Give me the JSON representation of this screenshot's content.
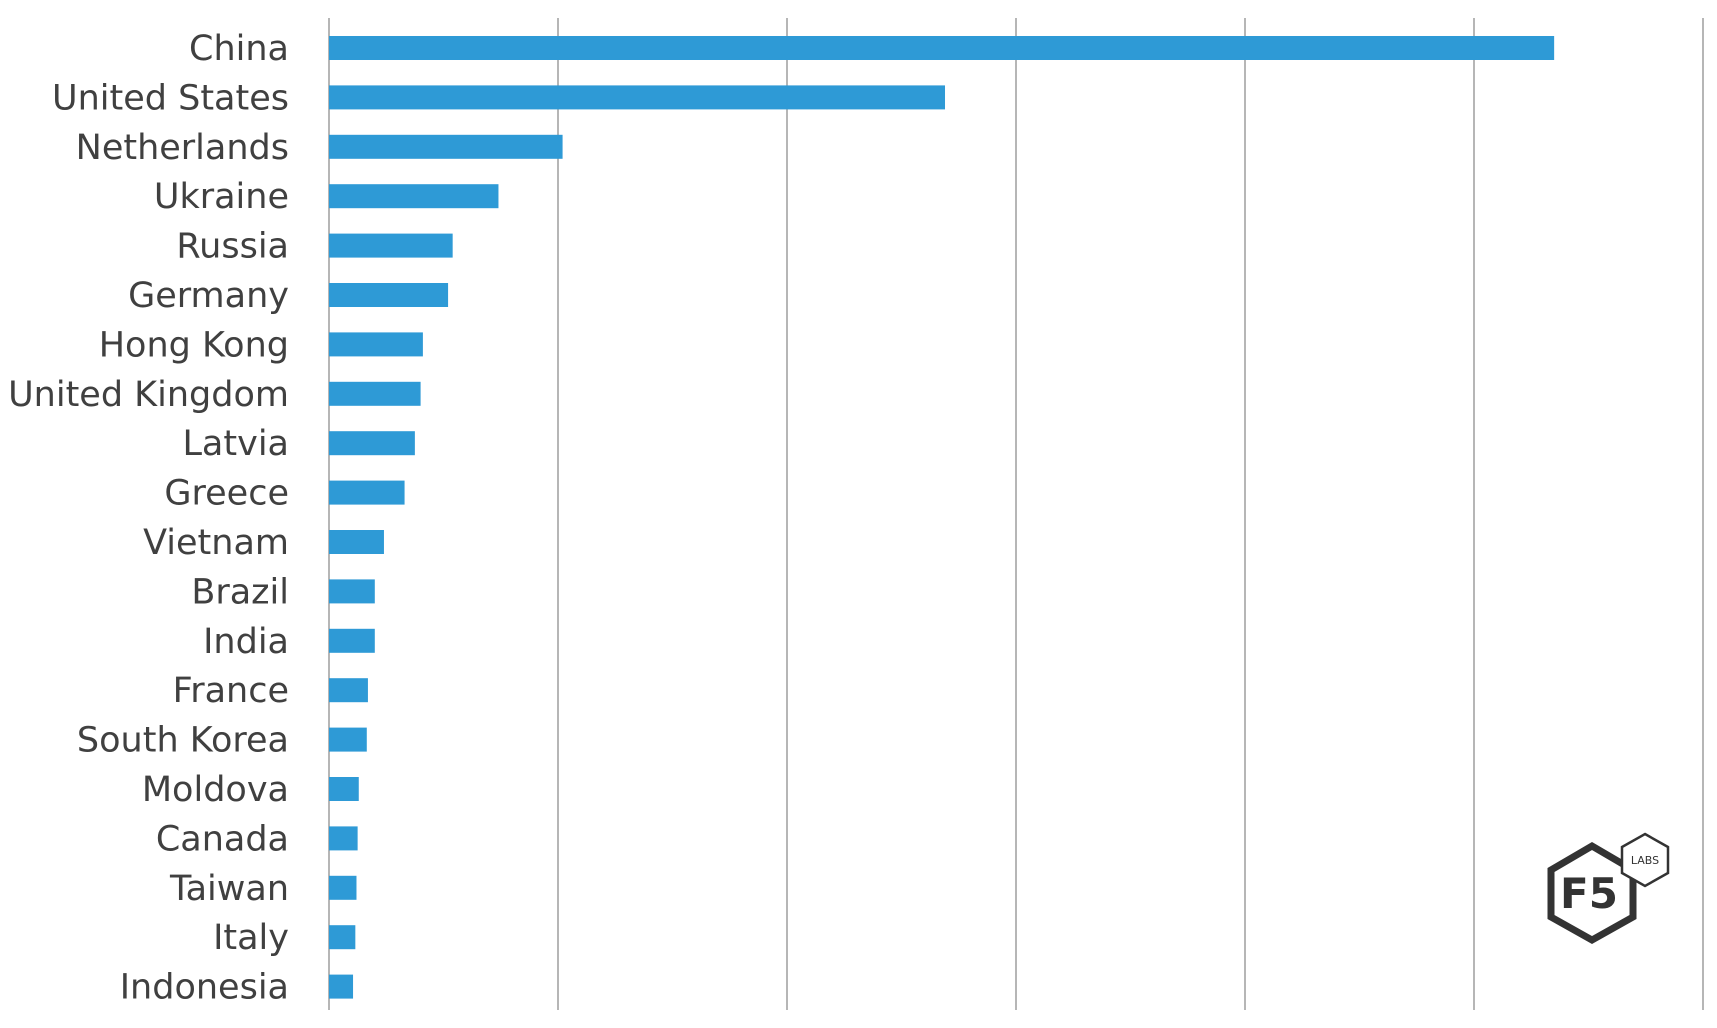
{
  "chart_data": {
    "type": "bar",
    "orientation": "horizontal",
    "title": "",
    "xlabel": "",
    "ylabel": "",
    "categories": [
      "China",
      "United States",
      "Netherlands",
      "Ukraine",
      "Russia",
      "Germany",
      "Hong Kong",
      "United Kingdom",
      "Latvia",
      "Greece",
      "Vietnam",
      "Brazil",
      "India",
      "France",
      "South Korea",
      "Moldova",
      "Canada",
      "Taiwan",
      "Italy",
      "Indonesia"
    ],
    "values": [
      5.35,
      2.69,
      1.02,
      0.74,
      0.54,
      0.52,
      0.41,
      0.4,
      0.375,
      0.33,
      0.24,
      0.2,
      0.2,
      0.17,
      0.165,
      0.13,
      0.125,
      0.12,
      0.115,
      0.105
    ],
    "xlim": [
      0,
      6
    ],
    "gridlines": [
      0,
      1,
      2,
      3,
      4,
      5,
      6
    ],
    "tick_labels_shown": false,
    "grid": true,
    "bar_color": "#2e9ad6",
    "grid_color": "#9e9e9e",
    "label_color": "#404040"
  },
  "logo": {
    "brand": "F5",
    "badge": "LABS",
    "icon": "f5-labs-hexagon-logo",
    "color": "#333333"
  }
}
